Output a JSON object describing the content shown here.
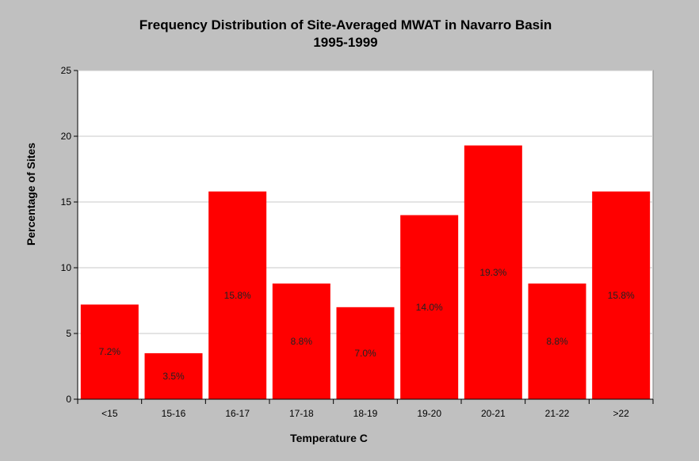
{
  "chart_data": {
    "type": "bar",
    "title": "Frequency Distribution of Site-Averaged MWAT in Navarro Basin",
    "subtitle": "1995-1999",
    "xlabel": "Temperature C",
    "ylabel": "Percentage of Sites",
    "categories": [
      "<15",
      "15-16",
      "16-17",
      "17-18",
      "18-19",
      "19-20",
      "20-21",
      "21-22",
      ">22"
    ],
    "values": [
      7.2,
      3.5,
      15.8,
      8.8,
      7.0,
      14.0,
      19.3,
      8.8,
      15.8
    ],
    "data_labels": [
      "7.2%",
      "3.5%",
      "15.8%",
      "8.8%",
      "7.0%",
      "14.0%",
      "19.3%",
      "8.8%",
      "15.8%"
    ],
    "ylim": [
      0,
      25
    ],
    "yticks": [
      0,
      5,
      10,
      15,
      20,
      25
    ],
    "grid": true,
    "bar_color": "#ff0000",
    "plot_background": "#ffffff",
    "page_background": "#c0c0c0"
  }
}
